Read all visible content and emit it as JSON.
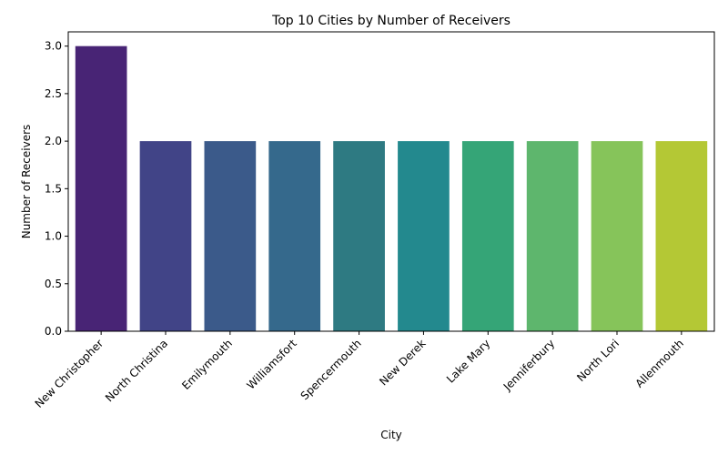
{
  "chart_data": {
    "type": "bar",
    "title": "Top 10 Cities by Number of Receivers",
    "xlabel": "City",
    "ylabel": "Number of Receivers",
    "categories": [
      "New Christopher",
      "North Christina",
      "Emilymouth",
      "Williamsfort",
      "Spencermouth",
      "New Derek",
      "Lake Mary",
      "Jenniferbury",
      "North Lori",
      "Allenmouth"
    ],
    "values": [
      3,
      2,
      2,
      2,
      2,
      2,
      2,
      2,
      2,
      2
    ],
    "colors": [
      "#482475",
      "#414487",
      "#3b5a8a",
      "#35698c",
      "#2e7a82",
      "#23898e",
      "#35a577",
      "#5eb66d",
      "#86c45a",
      "#b4c835"
    ],
    "ylim": [
      0,
      3.15
    ],
    "yticks": [
      0.0,
      0.5,
      1.0,
      1.5,
      2.0,
      2.5,
      3.0
    ],
    "ytick_labels": [
      "0.0",
      "0.5",
      "1.0",
      "1.5",
      "2.0",
      "2.5",
      "3.0"
    ],
    "grid": false,
    "legend": "none"
  }
}
